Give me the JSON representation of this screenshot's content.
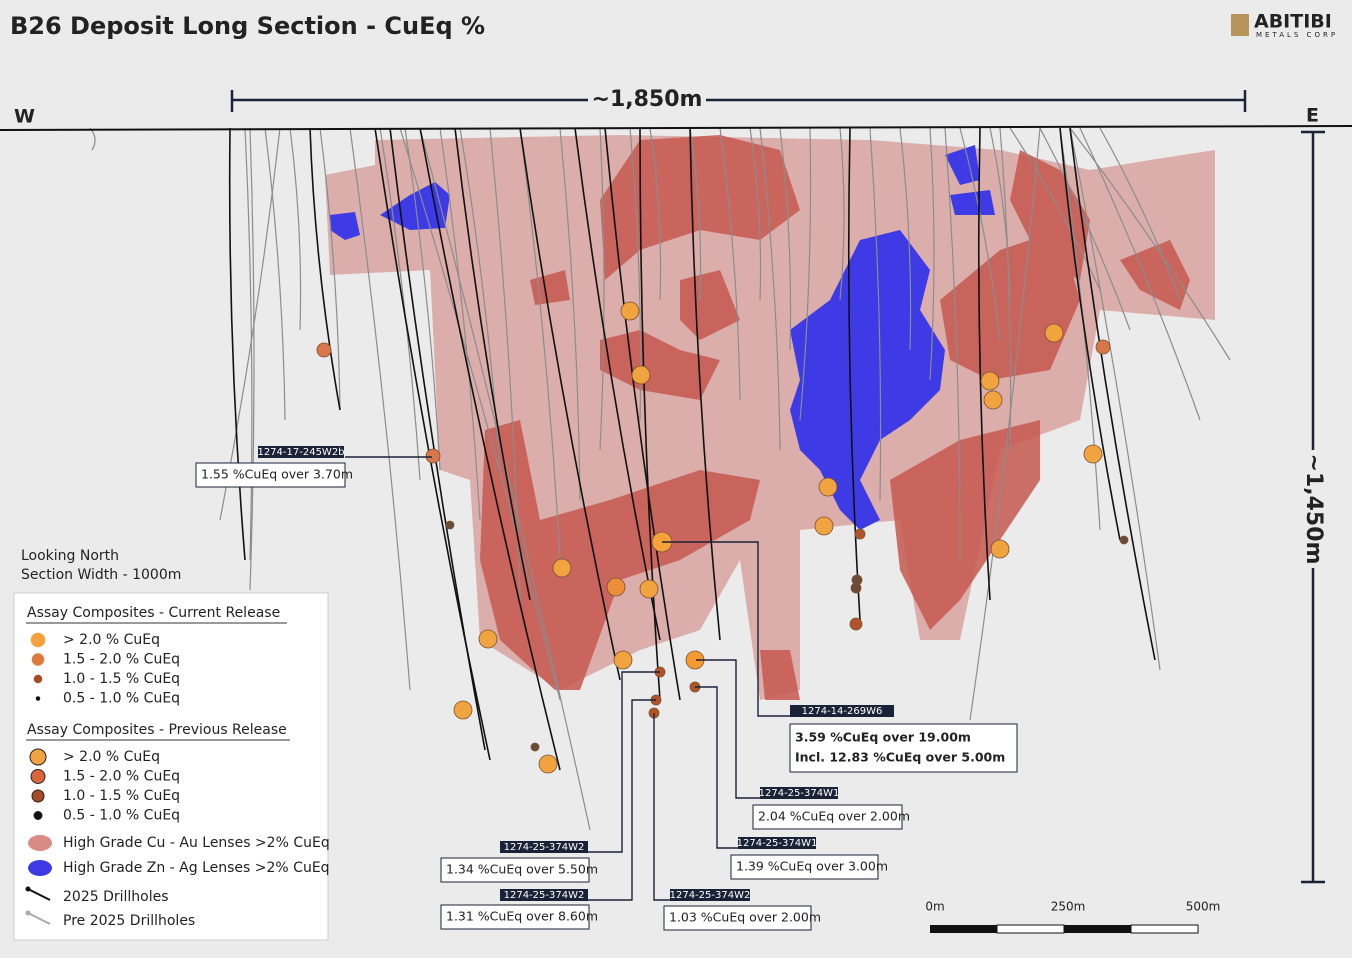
{
  "header": {
    "title": "B26 Deposit Long Section - CuEq %",
    "logo": "ABITIBI",
    "logo_sub": "METALS CORP"
  },
  "section": {
    "west": "W",
    "east": "E",
    "length": "~1,850m",
    "depth": "~1,450m",
    "view": "Looking North",
    "width": "Section Width - 1000m"
  },
  "callouts": [
    {
      "hole": "1274-17-245W2b",
      "lines": [
        "1.55 %CuEq over 3.70m"
      ]
    },
    {
      "hole": "1274-14-269W6",
      "lines": [
        "3.59 %CuEq over 19.00m",
        "Incl. 12.83 %CuEq over 5.00m"
      ]
    },
    {
      "hole": "1274-25-374W1",
      "lines": [
        "2.04 %CuEq over 2.00m"
      ]
    },
    {
      "hole": "1274-25-374W1",
      "lines": [
        "1.39 %CuEq over 3.00m"
      ]
    },
    {
      "hole": "1274-25-374W2",
      "lines": [
        "1.34 %CuEq over 5.50m"
      ]
    },
    {
      "hole": "1274-25-374W2",
      "lines": [
        "1.31 %CuEq over 8.60m"
      ]
    },
    {
      "hole": "1274-25-374W2",
      "lines": [
        "1.03 %CuEq over 2.00m"
      ]
    }
  ],
  "legend": {
    "current_title": "Assay Composites - Current Release",
    "current": [
      "> 2.0 % CuEq",
      "1.5 - 2.0 % CuEq",
      "1.0 - 1.5 % CuEq",
      "0.5 - 1.0 % CuEq"
    ],
    "previous_title": "Assay Composites - Previous Release",
    "previous": [
      "> 2.0 % CuEq",
      "1.5 - 2.0 % CuEq",
      "1.0 - 1.5 % CuEq",
      "0.5 - 1.0 % CuEq"
    ],
    "lenses": [
      "High Grade Cu - Au Lenses >2% CuEq",
      "High Grade Zn - Ag Lenses >2% CuEq"
    ],
    "drillholes": [
      "2025 Drillholes",
      "Pre 2025 Drillholes"
    ]
  },
  "scale_bar": [
    "0m",
    "250m",
    "500m"
  ]
}
